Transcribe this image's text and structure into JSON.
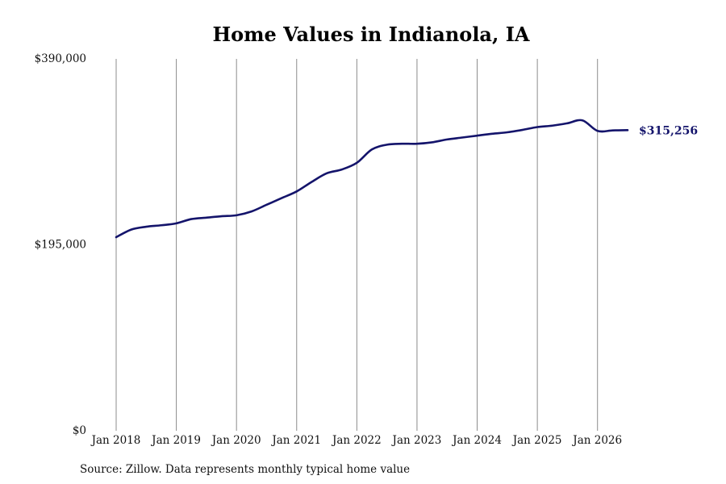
{
  "chart_data": {
    "type": "line",
    "title": "Home Values in Indianola, IA",
    "xlabel": "",
    "ylabel": "",
    "ylim": [
      0,
      390000
    ],
    "y_ticks": [
      {
        "value": 0,
        "label": "$0"
      },
      {
        "value": 195000,
        "label": "$195,000"
      },
      {
        "value": 390000,
        "label": "$390,000"
      }
    ],
    "x_ticks": [
      {
        "value": 2018.0,
        "label": "Jan 2018"
      },
      {
        "value": 2019.0,
        "label": "Jan 2019"
      },
      {
        "value": 2020.0,
        "label": "Jan 2020"
      },
      {
        "value": 2021.0,
        "label": "Jan 2021"
      },
      {
        "value": 2022.0,
        "label": "Jan 2022"
      },
      {
        "value": 2023.0,
        "label": "Jan 2023"
      },
      {
        "value": 2024.0,
        "label": "Jan 2024"
      },
      {
        "value": 2025.0,
        "label": "Jan 2025"
      },
      {
        "value": 2026.0,
        "label": "Jan 2026"
      }
    ],
    "xlim": [
      2018.0,
      2026.5
    ],
    "grid": "vertical",
    "series": [
      {
        "color": "#14146b",
        "x": [
          2018.0,
          2018.25,
          2018.5,
          2018.75,
          2019.0,
          2019.25,
          2019.5,
          2019.75,
          2020.0,
          2020.25,
          2020.5,
          2020.75,
          2021.0,
          2021.25,
          2021.5,
          2021.75,
          2022.0,
          2022.25,
          2022.5,
          2022.75,
          2023.0,
          2023.25,
          2023.5,
          2023.75,
          2024.0,
          2024.25,
          2024.5,
          2024.75,
          2025.0,
          2025.25,
          2025.5,
          2025.75,
          2026.0,
          2026.25,
          2026.5
        ],
        "y": [
          203000,
          211000,
          214000,
          215500,
          217500,
          222000,
          223500,
          225000,
          226000,
          230000,
          237000,
          244000,
          251000,
          261000,
          270000,
          274000,
          281000,
          295000,
          300000,
          301000,
          301000,
          302500,
          305500,
          307500,
          309500,
          311500,
          313000,
          315500,
          318500,
          320000,
          322500,
          325500,
          314500,
          315000,
          315256
        ]
      }
    ],
    "end_label": {
      "value": 315256,
      "label": "$315,256"
    }
  },
  "source_note": "Source: Zillow. Data represents monthly typical home value"
}
